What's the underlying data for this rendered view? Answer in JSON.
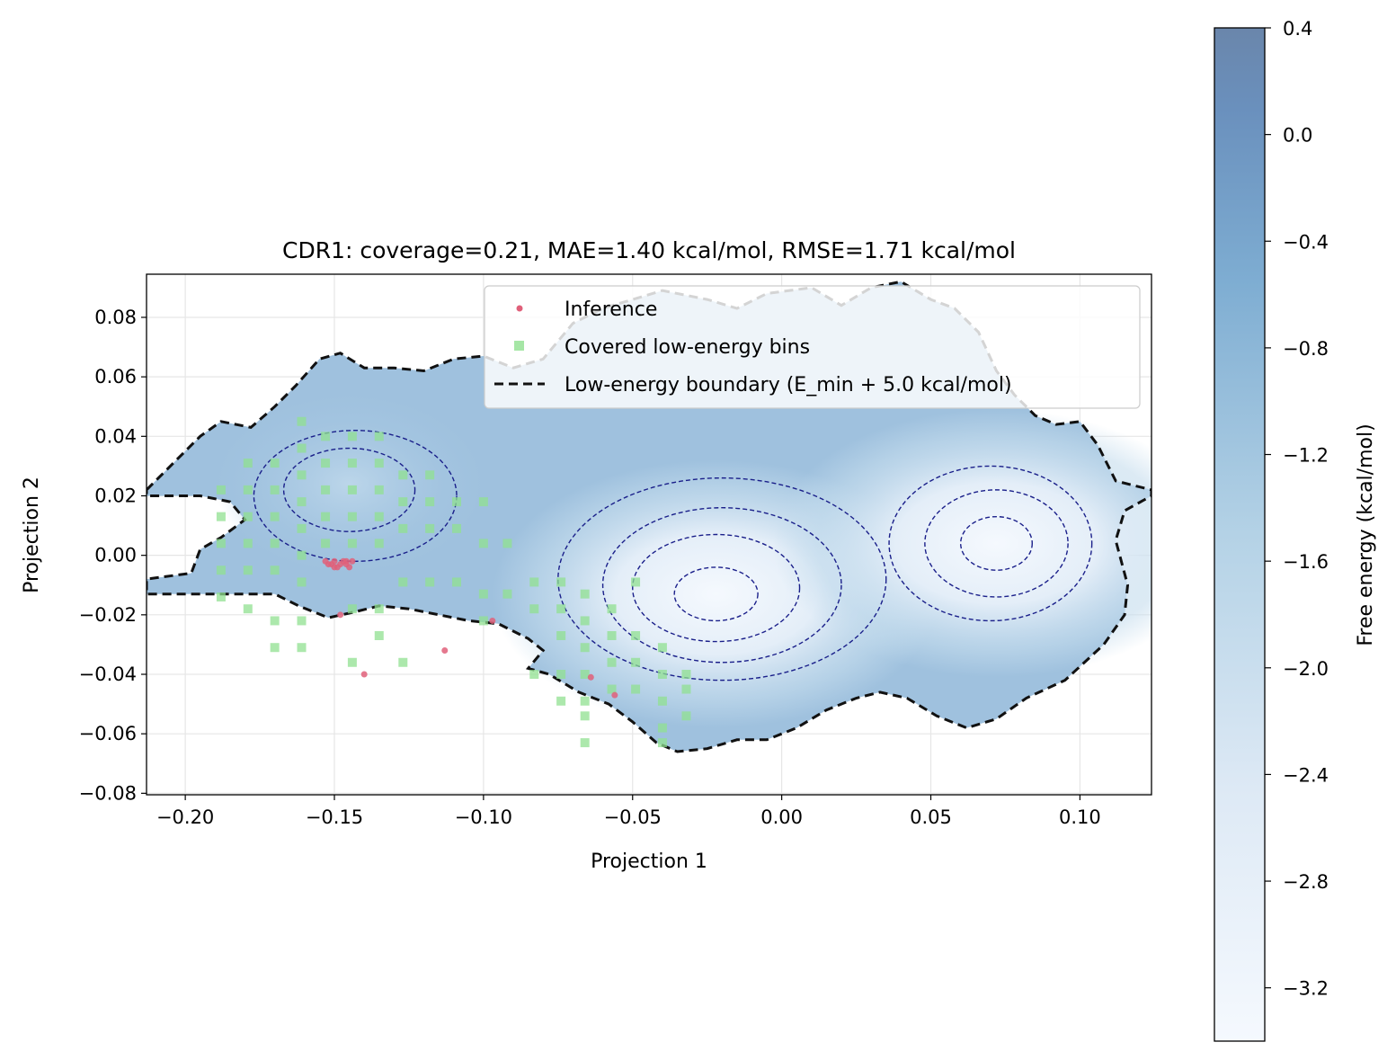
{
  "chart_data": {
    "type": "heatmap",
    "subtype": "free-energy contour map with overlaid scatter",
    "title": "CDR1: coverage=0.21, MAE=1.40 kcal/mol, RMSE=1.71 kcal/mol",
    "xlabel": "Projection 1",
    "ylabel": "Projection 2",
    "xlim": [
      -0.213,
      0.124
    ],
    "ylim": [
      -0.0805,
      0.0945
    ],
    "xticks": [
      -0.2,
      -0.15,
      -0.1,
      -0.05,
      0.0,
      0.05,
      0.1
    ],
    "xtick_labels": [
      "−0.20",
      "−0.15",
      "−0.10",
      "−0.05",
      "0.00",
      "0.05",
      "0.10"
    ],
    "yticks": [
      -0.08,
      -0.06,
      -0.04,
      -0.02,
      0.0,
      0.02,
      0.04,
      0.06,
      0.08
    ],
    "ytick_labels": [
      "−0.08",
      "−0.06",
      "−0.04",
      "−0.02",
      "0.00",
      "0.02",
      "0.04",
      "0.06",
      "0.08"
    ],
    "grid": true,
    "legend_position": "top-right",
    "legend": [
      {
        "label": "Inference",
        "kind": "point",
        "color": "#e0607a"
      },
      {
        "label": "Covered low-energy bins",
        "kind": "square",
        "color": "#90e090"
      },
      {
        "label": "Low-energy boundary (E_min + 5.0 kcal/mol)",
        "kind": "dashed-line",
        "color": "#111111"
      }
    ],
    "colorbar": {
      "label": "Free energy (kcal/mol)",
      "range": [
        -3.4,
        0.4
      ],
      "ticks": [
        0.4,
        0.0,
        -0.4,
        -0.8,
        -1.2,
        -1.6,
        -2.0,
        -2.4,
        -2.8,
        -3.2
      ],
      "tick_labels": [
        "0.4",
        "0.0",
        "−0.4",
        "−0.8",
        "−1.2",
        "−1.6",
        "−2.0",
        "−2.4",
        "−2.8",
        "−3.2"
      ],
      "cmap_low": "#f5f9fe",
      "cmap_high": "#6a86ab"
    },
    "energy_wells": [
      {
        "x": -0.022,
        "y": -0.013,
        "min_energy": -3.4
      },
      {
        "x": 0.072,
        "y": 0.004,
        "min_energy": -3.3
      },
      {
        "x": -0.145,
        "y": 0.024,
        "min_energy": -1.7
      }
    ],
    "low_energy_boundary": [
      [
        -0.213,
        0.022
      ],
      [
        -0.205,
        0.03
      ],
      [
        -0.195,
        0.04
      ],
      [
        -0.188,
        0.045
      ],
      [
        -0.178,
        0.043
      ],
      [
        -0.17,
        0.05
      ],
      [
        -0.163,
        0.057
      ],
      [
        -0.155,
        0.066
      ],
      [
        -0.148,
        0.068
      ],
      [
        -0.14,
        0.063
      ],
      [
        -0.13,
        0.063
      ],
      [
        -0.12,
        0.062
      ],
      [
        -0.11,
        0.066
      ],
      [
        -0.1,
        0.067
      ],
      [
        -0.09,
        0.063
      ],
      [
        -0.08,
        0.066
      ],
      [
        -0.07,
        0.078
      ],
      [
        -0.06,
        0.083
      ],
      [
        -0.05,
        0.086
      ],
      [
        -0.04,
        0.089
      ],
      [
        -0.025,
        0.086
      ],
      [
        -0.015,
        0.083
      ],
      [
        -0.005,
        0.088
      ],
      [
        0.01,
        0.09
      ],
      [
        0.02,
        0.084
      ],
      [
        0.03,
        0.09
      ],
      [
        0.04,
        0.092
      ],
      [
        0.05,
        0.086
      ],
      [
        0.058,
        0.083
      ],
      [
        0.066,
        0.075
      ],
      [
        0.072,
        0.062
      ],
      [
        0.078,
        0.054
      ],
      [
        0.085,
        0.047
      ],
      [
        0.092,
        0.044
      ],
      [
        0.1,
        0.045
      ],
      [
        0.106,
        0.037
      ],
      [
        0.112,
        0.025
      ],
      [
        0.124,
        0.022
      ],
      [
        0.124,
        0.02
      ],
      [
        0.115,
        0.015
      ],
      [
        0.112,
        0.005
      ],
      [
        0.116,
        -0.01
      ],
      [
        0.115,
        -0.02
      ],
      [
        0.108,
        -0.03
      ],
      [
        0.095,
        -0.042
      ],
      [
        0.082,
        -0.048
      ],
      [
        0.072,
        -0.055
      ],
      [
        0.062,
        -0.058
      ],
      [
        0.052,
        -0.054
      ],
      [
        0.042,
        -0.048
      ],
      [
        0.033,
        -0.046
      ],
      [
        0.025,
        -0.048
      ],
      [
        0.015,
        -0.052
      ],
      [
        0.005,
        -0.058
      ],
      [
        -0.005,
        -0.062
      ],
      [
        -0.015,
        -0.062
      ],
      [
        -0.025,
        -0.065
      ],
      [
        -0.035,
        -0.066
      ],
      [
        -0.042,
        -0.063
      ],
      [
        -0.05,
        -0.056
      ],
      [
        -0.058,
        -0.05
      ],
      [
        -0.068,
        -0.046
      ],
      [
        -0.078,
        -0.04
      ],
      [
        -0.085,
        -0.038
      ],
      [
        -0.08,
        -0.032
      ],
      [
        -0.085,
        -0.028
      ],
      [
        -0.095,
        -0.023
      ],
      [
        -0.105,
        -0.022
      ],
      [
        -0.115,
        -0.02
      ],
      [
        -0.125,
        -0.018
      ],
      [
        -0.135,
        -0.017
      ],
      [
        -0.143,
        -0.019
      ],
      [
        -0.152,
        -0.021
      ],
      [
        -0.162,
        -0.017
      ],
      [
        -0.17,
        -0.013
      ],
      [
        -0.18,
        -0.013
      ],
      [
        -0.195,
        -0.013
      ],
      [
        -0.213,
        -0.013
      ],
      [
        -0.213,
        -0.008
      ],
      [
        -0.198,
        -0.006
      ],
      [
        -0.195,
        0.002
      ],
      [
        -0.188,
        0.006
      ],
      [
        -0.18,
        0.012
      ],
      [
        -0.185,
        0.018
      ],
      [
        -0.195,
        0.02
      ],
      [
        -0.213,
        0.02
      ]
    ],
    "contour_levels": [
      {
        "energy": -3.2,
        "x": -0.022,
        "y": -0.013,
        "rx": 0.014,
        "ry": 0.009
      },
      {
        "energy": -2.8,
        "x": -0.022,
        "y": -0.011,
        "rx": 0.028,
        "ry": 0.018
      },
      {
        "energy": -2.4,
        "x": -0.02,
        "y": -0.01,
        "rx": 0.04,
        "ry": 0.026
      },
      {
        "energy": -2.0,
        "x": -0.02,
        "y": -0.008,
        "rx": 0.055,
        "ry": 0.034
      },
      {
        "energy": -3.2,
        "x": 0.072,
        "y": 0.004,
        "rx": 0.012,
        "ry": 0.009
      },
      {
        "energy": -2.8,
        "x": 0.072,
        "y": 0.004,
        "rx": 0.024,
        "ry": 0.018
      },
      {
        "energy": -2.4,
        "x": 0.07,
        "y": 0.004,
        "rx": 0.034,
        "ry": 0.026
      },
      {
        "energy": -1.6,
        "x": -0.145,
        "y": 0.022,
        "rx": 0.022,
        "ry": 0.014
      },
      {
        "energy": -1.2,
        "x": -0.143,
        "y": 0.02,
        "rx": 0.034,
        "ry": 0.022
      }
    ],
    "inference_points": [
      [
        -0.153,
        -0.002
      ],
      [
        -0.151,
        -0.003
      ],
      [
        -0.15,
        -0.002
      ],
      [
        -0.149,
        -0.004
      ],
      [
        -0.148,
        -0.003
      ],
      [
        -0.147,
        -0.002
      ],
      [
        -0.146,
        -0.003
      ],
      [
        -0.145,
        -0.004
      ],
      [
        -0.144,
        -0.002
      ],
      [
        -0.15,
        -0.004
      ],
      [
        -0.152,
        -0.003
      ],
      [
        -0.146,
        -0.002
      ],
      [
        -0.148,
        -0.02
      ],
      [
        -0.14,
        -0.04
      ],
      [
        -0.113,
        -0.032
      ],
      [
        -0.097,
        -0.022
      ],
      [
        -0.064,
        -0.041
      ],
      [
        -0.056,
        -0.047
      ]
    ],
    "covered_bins": [
      [
        -0.188,
        0.022
      ],
      [
        -0.188,
        0.013
      ],
      [
        -0.188,
        0.004
      ],
      [
        -0.188,
        -0.005
      ],
      [
        -0.188,
        -0.014
      ],
      [
        -0.179,
        0.031
      ],
      [
        -0.179,
        0.022
      ],
      [
        -0.179,
        0.013
      ],
      [
        -0.179,
        0.004
      ],
      [
        -0.179,
        -0.005
      ],
      [
        -0.179,
        -0.018
      ],
      [
        -0.17,
        0.031
      ],
      [
        -0.17,
        0.022
      ],
      [
        -0.17,
        0.013
      ],
      [
        -0.17,
        0.004
      ],
      [
        -0.17,
        -0.005
      ],
      [
        -0.17,
        -0.022
      ],
      [
        -0.17,
        -0.031
      ],
      [
        -0.161,
        0.045
      ],
      [
        -0.161,
        0.036
      ],
      [
        -0.161,
        0.027
      ],
      [
        -0.161,
        0.018
      ],
      [
        -0.161,
        0.009
      ],
      [
        -0.161,
        0.0
      ],
      [
        -0.161,
        -0.009
      ],
      [
        -0.161,
        -0.022
      ],
      [
        -0.161,
        -0.031
      ],
      [
        -0.153,
        0.04
      ],
      [
        -0.153,
        0.031
      ],
      [
        -0.153,
        0.022
      ],
      [
        -0.153,
        0.013
      ],
      [
        -0.153,
        0.004
      ],
      [
        -0.144,
        0.04
      ],
      [
        -0.144,
        0.031
      ],
      [
        -0.144,
        0.022
      ],
      [
        -0.144,
        0.013
      ],
      [
        -0.144,
        0.004
      ],
      [
        -0.144,
        -0.018
      ],
      [
        -0.144,
        -0.036
      ],
      [
        -0.135,
        0.04
      ],
      [
        -0.135,
        0.031
      ],
      [
        -0.135,
        0.022
      ],
      [
        -0.135,
        0.013
      ],
      [
        -0.135,
        0.004
      ],
      [
        -0.135,
        -0.018
      ],
      [
        -0.135,
        -0.027
      ],
      [
        -0.127,
        0.027
      ],
      [
        -0.127,
        0.018
      ],
      [
        -0.127,
        0.009
      ],
      [
        -0.127,
        -0.009
      ],
      [
        -0.127,
        -0.036
      ],
      [
        -0.118,
        0.027
      ],
      [
        -0.118,
        0.018
      ],
      [
        -0.118,
        0.009
      ],
      [
        -0.118,
        -0.009
      ],
      [
        -0.109,
        0.018
      ],
      [
        -0.109,
        0.009
      ],
      [
        -0.109,
        -0.009
      ],
      [
        -0.1,
        0.018
      ],
      [
        -0.1,
        0.004
      ],
      [
        -0.1,
        -0.013
      ],
      [
        -0.1,
        -0.022
      ],
      [
        -0.092,
        0.004
      ],
      [
        -0.092,
        -0.013
      ],
      [
        -0.083,
        -0.009
      ],
      [
        -0.083,
        -0.018
      ],
      [
        -0.083,
        -0.04
      ],
      [
        -0.074,
        -0.009
      ],
      [
        -0.074,
        -0.018
      ],
      [
        -0.074,
        -0.027
      ],
      [
        -0.074,
        -0.04
      ],
      [
        -0.074,
        -0.049
      ],
      [
        -0.066,
        -0.013
      ],
      [
        -0.066,
        -0.022
      ],
      [
        -0.066,
        -0.031
      ],
      [
        -0.066,
        -0.04
      ],
      [
        -0.066,
        -0.049
      ],
      [
        -0.066,
        -0.054
      ],
      [
        -0.066,
        -0.063
      ],
      [
        -0.057,
        -0.018
      ],
      [
        -0.057,
        -0.027
      ],
      [
        -0.057,
        -0.036
      ],
      [
        -0.057,
        -0.045
      ],
      [
        -0.049,
        -0.009
      ],
      [
        -0.049,
        -0.027
      ],
      [
        -0.049,
        -0.036
      ],
      [
        -0.049,
        -0.045
      ],
      [
        -0.04,
        -0.031
      ],
      [
        -0.04,
        -0.04
      ],
      [
        -0.04,
        -0.049
      ],
      [
        -0.04,
        -0.058
      ],
      [
        -0.04,
        -0.063
      ],
      [
        -0.032,
        -0.04
      ],
      [
        -0.032,
        -0.045
      ],
      [
        -0.032,
        -0.054
      ]
    ]
  }
}
